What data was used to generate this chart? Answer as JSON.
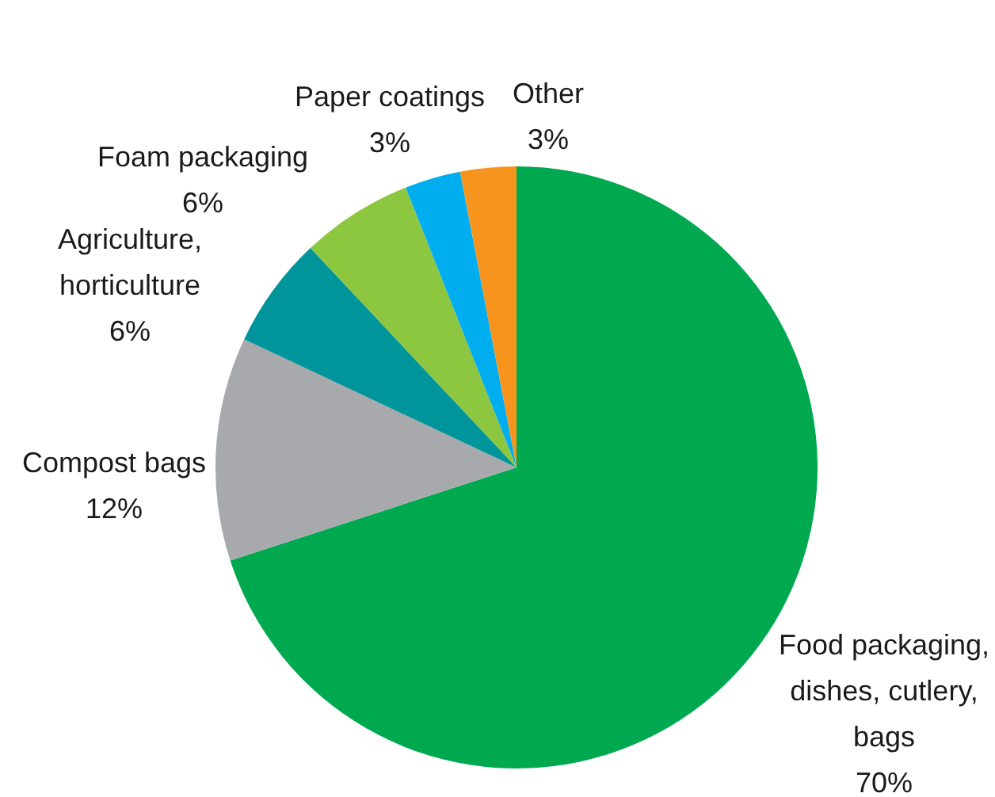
{
  "chart_data": {
    "type": "pie",
    "categories": [
      "Food packaging,\ndishes, cutlery,\nbags",
      "Compost bags",
      "Agriculture,\nhorticulture",
      "Foam packaging",
      "Paper coatings",
      "Other"
    ],
    "values": [
      70,
      12,
      6,
      6,
      3,
      3
    ],
    "value_labels": [
      "70%",
      "12%",
      "6%",
      "6%",
      "3%",
      "3%"
    ],
    "colors": [
      "#00a94f",
      "#a7a9ac",
      "#00959a",
      "#8dc63f",
      "#00aeef",
      "#f7941d"
    ]
  }
}
